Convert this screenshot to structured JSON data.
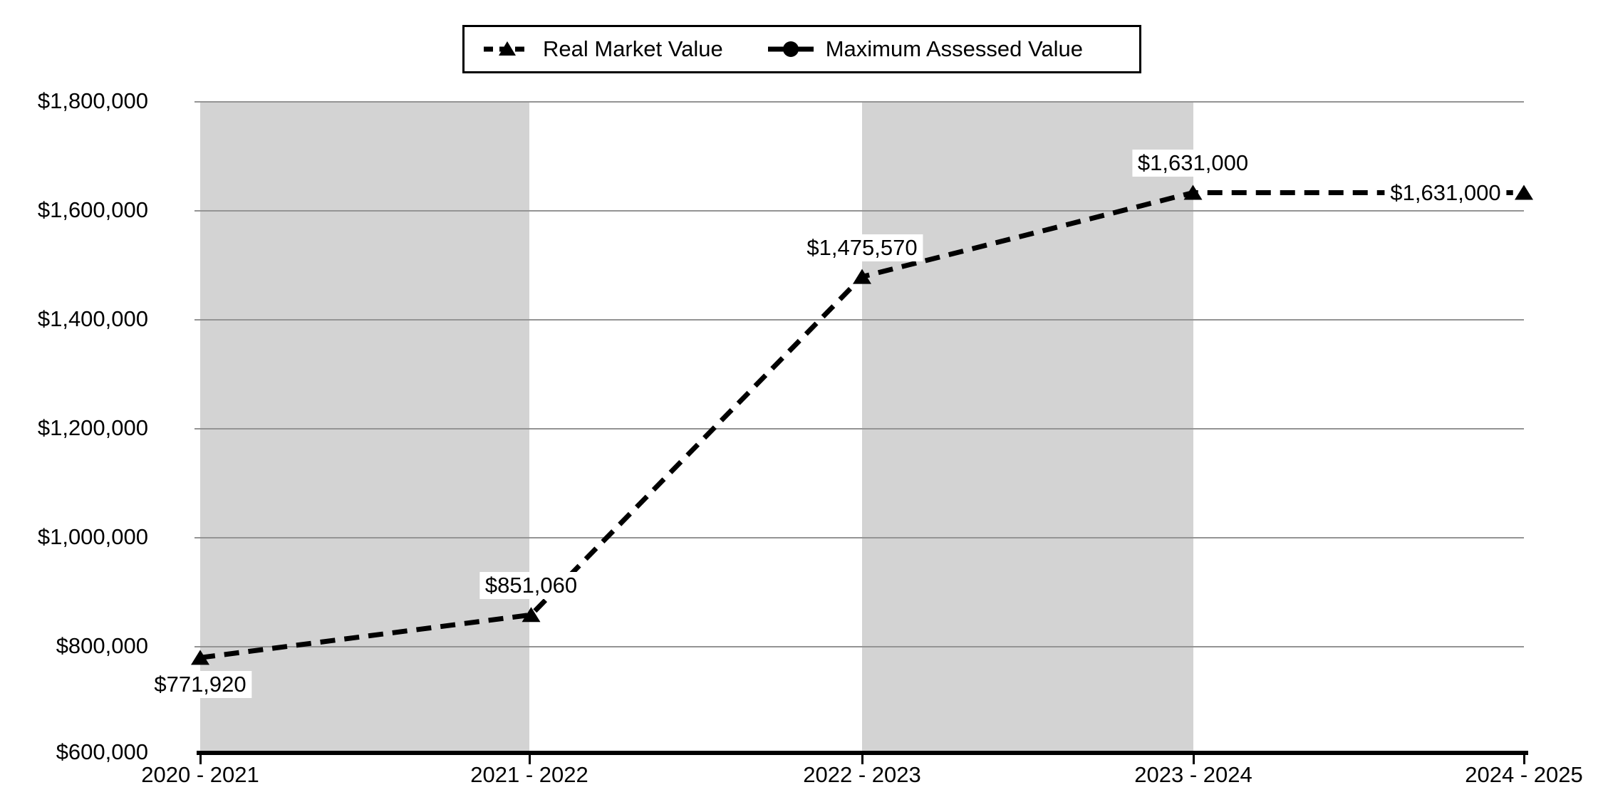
{
  "chart_data": {
    "type": "line",
    "title": "",
    "xlabel": "",
    "ylabel": "",
    "categories": [
      "2020 - 2021",
      "2021 - 2022",
      "2022 - 2023",
      "2023 - 2024",
      "2024 - 2025"
    ],
    "series": [
      {
        "name": "Real Market Value",
        "line_style": "dashed",
        "marker": "triangle",
        "color": "#000000",
        "values": [
          771920,
          851060,
          1475570,
          1631000,
          1631000
        ],
        "data_labels": [
          "$771,920",
          "$851,060",
          "$1,475,570",
          "$1,631,000",
          "$1,631,000"
        ],
        "label_placements": [
          "below",
          "above",
          "above",
          "above",
          "left"
        ]
      },
      {
        "name": "Maximum Assessed Value",
        "line_style": "solid",
        "marker": "circle",
        "color": "#000000",
        "values": [],
        "visible_in_plot": false
      }
    ],
    "y_axis": {
      "min": 600000,
      "max": 1800000,
      "tick_interval": 200000,
      "tick_labels": [
        "$1,800,000",
        "$1,600,000",
        "$1,400,000",
        "$1,200,000",
        "$1,000,000",
        "$800,000",
        "$600,000"
      ]
    },
    "legend_position": "top",
    "gridlines": true,
    "background_bands": {
      "description": "alternating vertical shading between category ticks: shaded, white, shaded, white",
      "shaded_category_ranges": [
        [
          0,
          1
        ],
        [
          2,
          3
        ]
      ]
    },
    "colors": {
      "line": "#000000",
      "text": "#000000",
      "gridline": "#949494",
      "band": "#d3d3d3",
      "axis": "#000000",
      "background": "#ffffff",
      "data_label_background": "#ffffff"
    }
  }
}
